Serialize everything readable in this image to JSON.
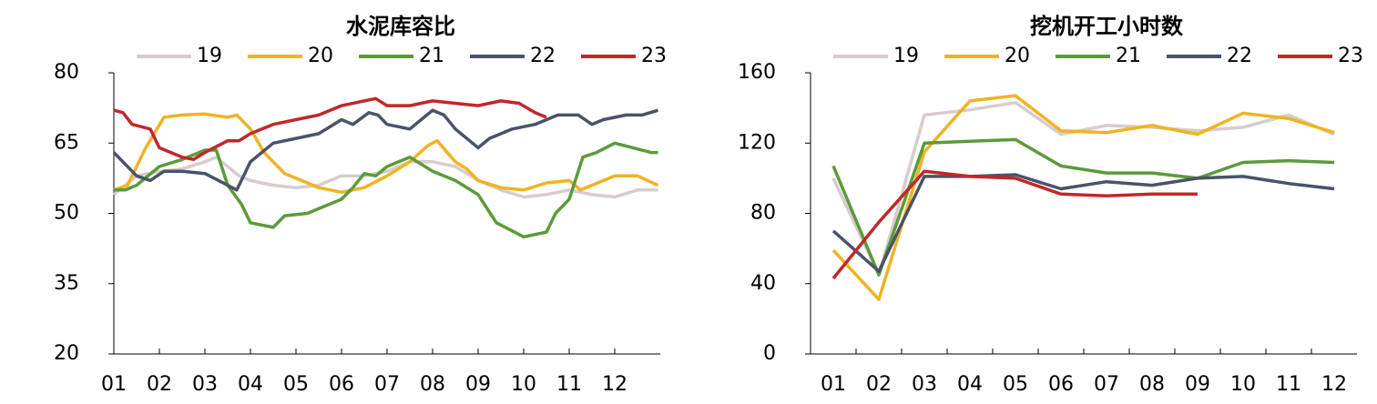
{
  "chart_data": [
    {
      "type": "line",
      "title": "水泥库容比",
      "xlim": [
        1,
        13
      ],
      "xticks": [
        {
          "value": 1,
          "label": "01"
        },
        {
          "value": 2,
          "label": "02"
        },
        {
          "value": 3,
          "label": "03"
        },
        {
          "value": 4,
          "label": "04"
        },
        {
          "value": 5,
          "label": "05"
        },
        {
          "value": 6,
          "label": "06"
        },
        {
          "value": 7,
          "label": "07"
        },
        {
          "value": 8,
          "label": "08"
        },
        {
          "value": 9,
          "label": "09"
        },
        {
          "value": 10,
          "label": "10"
        },
        {
          "value": 11,
          "label": "11"
        },
        {
          "value": 12,
          "label": "12"
        }
      ],
      "ylim": [
        20,
        80
      ],
      "yticks": [
        20,
        35,
        50,
        65,
        80
      ],
      "series": [
        {
          "name": "19",
          "color": "#d8cccd",
          "x": [
            1,
            1.5,
            2,
            2.5,
            3,
            3.25,
            3.75,
            4,
            4.5,
            5,
            5.5,
            6,
            6.5,
            7,
            7.5,
            8,
            8.5,
            9,
            9.5,
            10,
            10.5,
            11,
            11.5,
            12,
            12.5,
            12.95
          ],
          "values": [
            54,
            58,
            59,
            59.5,
            61,
            62,
            58,
            57,
            56,
            55.5,
            56,
            58,
            58,
            59,
            61,
            61,
            60,
            57,
            55,
            53.5,
            54,
            55,
            54,
            53.5,
            55,
            55
          ]
        },
        {
          "name": "20",
          "color": "#f0b323",
          "x": [
            1,
            1.3,
            1.7,
            2.1,
            2.5,
            3,
            3.5,
            3.7,
            4,
            4.3,
            4.75,
            5.25,
            5.5,
            6,
            6.5,
            7,
            7.5,
            7.9,
            8.1,
            8.5,
            8.75,
            9,
            9.5,
            10,
            10.5,
            11,
            11.25,
            11.5,
            12,
            12.5,
            12.95
          ],
          "values": [
            55,
            56,
            64,
            70.5,
            71,
            71.2,
            70.5,
            71,
            68,
            63,
            58.5,
            56.5,
            55.5,
            54.5,
            55.5,
            58,
            61,
            64.5,
            65.5,
            61,
            59.5,
            57,
            55.5,
            55,
            56.5,
            57,
            55,
            56,
            58,
            58,
            56
          ]
        },
        {
          "name": "21",
          "color": "#5b9b3a",
          "x": [
            1,
            1.25,
            1.5,
            2,
            2.5,
            3,
            3.25,
            3.5,
            3.8,
            4,
            4.5,
            4.75,
            5.25,
            5.5,
            6,
            6.25,
            6.5,
            6.75,
            7,
            7.5,
            8,
            8.5,
            9,
            9.4,
            9.8,
            10,
            10.5,
            10.7,
            11,
            11.3,
            11.6,
            12,
            12.4,
            12.8,
            12.95
          ],
          "values": [
            55,
            55,
            56,
            60,
            61.5,
            63.5,
            63.5,
            56,
            52,
            48,
            47,
            49.5,
            50,
            51,
            53,
            55.5,
            58.5,
            58,
            60,
            62,
            59,
            57,
            54,
            48,
            46,
            45,
            46,
            50,
            53,
            62,
            63,
            65,
            64,
            63,
            63
          ]
        },
        {
          "name": "22",
          "color": "#4a5368",
          "x": [
            1,
            1.5,
            1.8,
            2.1,
            2.5,
            3,
            3.5,
            3.7,
            4,
            4.5,
            5,
            5.5,
            6,
            6.25,
            6.6,
            6.8,
            7,
            7.5,
            8,
            8.25,
            8.5,
            9,
            9.25,
            9.75,
            10.25,
            10.75,
            11.2,
            11.5,
            11.75,
            12.25,
            12.6,
            12.95
          ],
          "values": [
            63,
            58,
            57,
            59,
            59,
            58.5,
            56,
            55,
            61,
            65,
            66,
            67,
            70,
            69,
            71.5,
            71,
            69,
            68,
            72,
            71,
            68,
            64,
            66,
            68,
            69,
            71,
            71,
            69,
            70,
            71,
            71,
            72
          ]
        },
        {
          "name": "23",
          "color": "#c0282b",
          "x": [
            1,
            1.2,
            1.4,
            1.8,
            2,
            2.5,
            2.75,
            3,
            3.5,
            3.75,
            4,
            4.5,
            5,
            5.5,
            6,
            6.5,
            6.75,
            7,
            7.5,
            8,
            8.5,
            9,
            9.5,
            9.9,
            10.25,
            10.5
          ],
          "values": [
            72,
            71.5,
            69,
            68,
            64,
            62,
            61.5,
            63,
            65.5,
            65.5,
            67,
            69,
            70,
            71,
            73,
            74,
            74.5,
            73,
            73,
            74,
            73.5,
            73,
            74,
            73.5,
            71.5,
            70.5
          ]
        }
      ]
    },
    {
      "type": "line",
      "title": "挖机开工小时数",
      "categories": [
        "01",
        "02",
        "03",
        "04",
        "05",
        "06",
        "07",
        "08",
        "09",
        "10",
        "11",
        "12"
      ],
      "ylim": [
        0,
        160
      ],
      "yticks": [
        0,
        40,
        80,
        120,
        160
      ],
      "series": [
        {
          "name": "19",
          "color": "#d8cccd",
          "values": [
            100,
            45,
            136,
            139,
            143,
            125,
            130,
            129,
            127,
            129,
            136,
            125
          ]
        },
        {
          "name": "20",
          "color": "#f0b323",
          "values": [
            59,
            31,
            115,
            144,
            147,
            127,
            126,
            130,
            125,
            137,
            134,
            126
          ]
        },
        {
          "name": "21",
          "color": "#5b9b3a",
          "values": [
            107,
            45,
            120,
            121,
            122,
            107,
            103,
            103,
            100,
            109,
            110,
            109
          ]
        },
        {
          "name": "22",
          "color": "#4a5368",
          "values": [
            70,
            47,
            101,
            101,
            102,
            94,
            98,
            96,
            100,
            101,
            97,
            94
          ]
        },
        {
          "name": "23",
          "color": "#c0282b",
          "values": [
            43,
            75,
            104,
            101,
            100,
            91,
            90,
            91,
            91,
            null,
            null,
            null
          ]
        }
      ]
    }
  ]
}
